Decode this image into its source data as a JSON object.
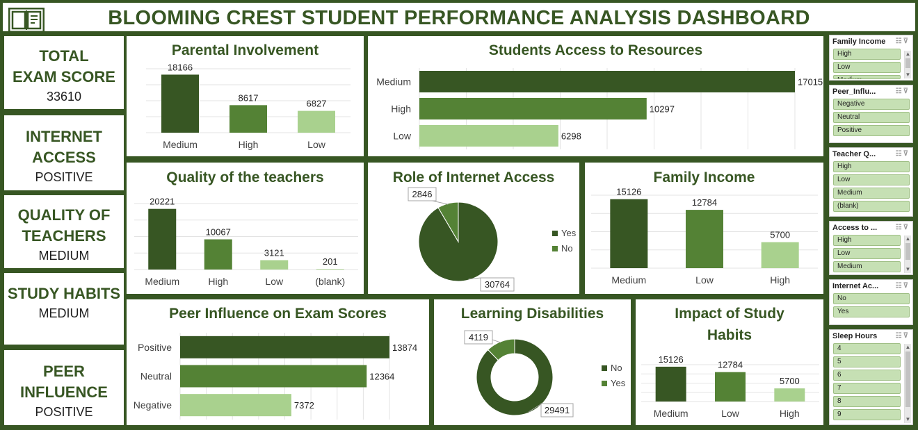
{
  "dashboard": {
    "title": "BLOOMING CREST STUDENT PERFORMANCE ANALYSIS DASHBOARD"
  },
  "kpis": [
    {
      "title_lines": [
        "TOTAL",
        "EXAM SCORE"
      ],
      "value": "33610"
    },
    {
      "title_lines": [
        "INTERNET",
        "ACCESS"
      ],
      "value": "POSITIVE"
    },
    {
      "title_lines": [
        "QUALITY OF",
        "TEACHERS"
      ],
      "value": "MEDIUM"
    },
    {
      "title_lines": [
        "STUDY HABITS"
      ],
      "value": "MEDIUM"
    },
    {
      "title_lines": [
        "PEER",
        "INFLUENCE"
      ],
      "value": "POSITIVE"
    }
  ],
  "colors": {
    "dark": "#375623",
    "mid": "#548235",
    "light": "#a9d18e",
    "frame": "#375623"
  },
  "chart_data": [
    {
      "id": "parental",
      "type": "bar",
      "title": "Parental Involvement",
      "categories": [
        "Medium",
        "High",
        "Low"
      ],
      "values": [
        18166,
        8617,
        6827
      ],
      "value_labels": [
        "18166",
        "8617",
        "6827"
      ],
      "ylim": [
        0,
        20000
      ]
    },
    {
      "id": "resources",
      "type": "bar",
      "orientation": "horizontal",
      "title": "Students Access to Resources",
      "categories": [
        "Medium",
        "High",
        "Low"
      ],
      "values": [
        17015,
        10297,
        6298
      ],
      "value_labels": [
        "17015",
        "10297",
        "6298"
      ],
      "xlim": [
        0,
        17015
      ]
    },
    {
      "id": "teachers",
      "type": "bar",
      "title": "Quality of the teachers",
      "categories": [
        "Medium",
        "High",
        "Low",
        "(blank)"
      ],
      "values": [
        20221,
        10067,
        3121,
        201
      ],
      "value_labels": [
        "20221",
        "10067",
        "3121",
        "201"
      ],
      "ylim": [
        0,
        22000
      ]
    },
    {
      "id": "internet",
      "type": "pie",
      "title": "Role of Internet Access",
      "categories": [
        "Yes",
        "No"
      ],
      "values": [
        30764,
        2846
      ],
      "value_labels": [
        "30764",
        "2846"
      ],
      "legend": "right"
    },
    {
      "id": "income",
      "type": "bar",
      "title": "Family Income",
      "categories": [
        "Medium",
        "Low",
        "High"
      ],
      "values": [
        15126,
        12784,
        5700
      ],
      "value_labels": [
        "15126",
        "12784",
        "5700"
      ],
      "ylim": [
        0,
        16000
      ]
    },
    {
      "id": "peer",
      "type": "bar",
      "orientation": "horizontal",
      "title": "Peer Influence on Exam Scores",
      "categories": [
        "Positive",
        "Neutral",
        "Negative"
      ],
      "values": [
        13874,
        12364,
        7372
      ],
      "value_labels": [
        "13874",
        "12364",
        "7372"
      ],
      "xlim": [
        0,
        13874
      ]
    },
    {
      "id": "disabilities",
      "type": "pie",
      "donut": true,
      "title": "Learning Disabilities",
      "categories": [
        "No",
        "Yes"
      ],
      "values": [
        29491,
        4119
      ],
      "value_labels": [
        "29491",
        "4119"
      ],
      "legend": "right"
    },
    {
      "id": "study",
      "type": "bar",
      "title_lines": [
        "Impact of Study",
        "Habits"
      ],
      "categories": [
        "Medium",
        "Low",
        "High"
      ],
      "values": [
        15126,
        12784,
        5700
      ],
      "value_labels": [
        "15126",
        "12784",
        "5700"
      ],
      "ylim": [
        0,
        16000
      ]
    }
  ],
  "slicers": [
    {
      "title": "Family Income",
      "items": [
        "High",
        "Low",
        "Medium"
      ],
      "scroll": true
    },
    {
      "title": "Peer_Influ...",
      "items": [
        "Negative",
        "Neutral",
        "Positive"
      ],
      "scroll": false
    },
    {
      "title": "Teacher Q...",
      "items": [
        "High",
        "Low",
        "Medium",
        "(blank)"
      ],
      "scroll": false
    },
    {
      "title": "Access to ...",
      "items": [
        "High",
        "Low",
        "Medium"
      ],
      "scroll": true
    },
    {
      "title": "Internet Ac...",
      "items": [
        "No",
        "Yes"
      ],
      "scroll": false
    },
    {
      "title": "Sleep Hours",
      "items": [
        "4",
        "5",
        "6",
        "7",
        "8",
        "9"
      ],
      "scroll": true
    }
  ],
  "icons": {
    "logo": "book-icon",
    "multi_select": "multi-select-icon",
    "clear_filter": "clear-filter-icon"
  }
}
